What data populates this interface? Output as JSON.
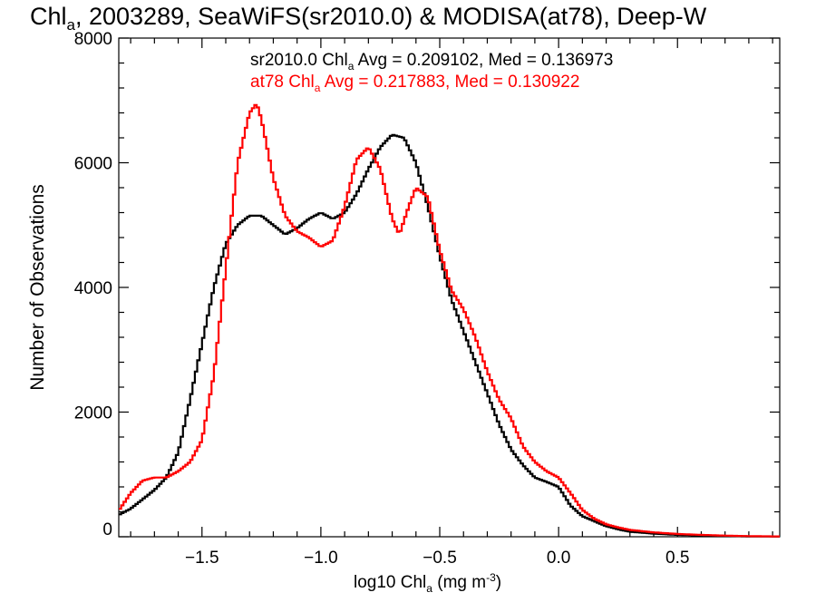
{
  "chart_data": {
    "type": "line",
    "title": {
      "main": "Chl",
      "sub": "a",
      "rest": ", 2003289, SeaWiFS(sr2010.0) & MODISA(at78), Deep-W"
    },
    "xlabel": {
      "main": "log10 Chl",
      "sub": "a",
      "rest": " (mg m",
      "sup": "-3",
      "end": ")"
    },
    "ylabel": "Number of Observations",
    "xlim": [
      -1.85,
      0.93
    ],
    "ylim": [
      0,
      8000
    ],
    "xticks": [
      -1.5,
      -1.0,
      -0.5,
      0.0,
      0.5
    ],
    "xtick_labels": [
      "−1.5",
      "−1.0",
      "−0.5",
      "0.0",
      "0.5"
    ],
    "yticks": [
      0,
      2000,
      4000,
      6000,
      8000
    ],
    "ytick_labels": [
      "0",
      "2000",
      "4000",
      "6000",
      "8000"
    ],
    "grid": false,
    "legend_position": "top",
    "series": [
      {
        "legend": {
          "main": "sr2010.0 Chl",
          "sub": "a",
          "rest": " Avg = 0.209102, Med = 0.136973"
        },
        "color": "#000000",
        "points": [
          [
            -1.85,
            350
          ],
          [
            -1.8,
            450
          ],
          [
            -1.75,
            600
          ],
          [
            -1.7,
            750
          ],
          [
            -1.65,
            950
          ],
          [
            -1.6,
            1350
          ],
          [
            -1.55,
            2200
          ],
          [
            -1.5,
            3100
          ],
          [
            -1.45,
            4000
          ],
          [
            -1.4,
            4700
          ],
          [
            -1.35,
            5000
          ],
          [
            -1.3,
            5150
          ],
          [
            -1.25,
            5150
          ],
          [
            -1.2,
            5000
          ],
          [
            -1.15,
            4850
          ],
          [
            -1.1,
            4950
          ],
          [
            -1.05,
            5100
          ],
          [
            -1.0,
            5200
          ],
          [
            -0.95,
            5100
          ],
          [
            -0.9,
            5200
          ],
          [
            -0.85,
            5500
          ],
          [
            -0.8,
            5900
          ],
          [
            -0.75,
            6250
          ],
          [
            -0.7,
            6450
          ],
          [
            -0.65,
            6400
          ],
          [
            -0.6,
            6000
          ],
          [
            -0.55,
            5300
          ],
          [
            -0.5,
            4500
          ],
          [
            -0.45,
            3800
          ],
          [
            -0.4,
            3300
          ],
          [
            -0.35,
            2800
          ],
          [
            -0.3,
            2300
          ],
          [
            -0.25,
            1800
          ],
          [
            -0.2,
            1400
          ],
          [
            -0.15,
            1150
          ],
          [
            -0.1,
            950
          ],
          [
            -0.05,
            880
          ],
          [
            0.0,
            800
          ],
          [
            0.05,
            500
          ],
          [
            0.1,
            330
          ],
          [
            0.15,
            250
          ],
          [
            0.2,
            170
          ],
          [
            0.25,
            120
          ],
          [
            0.3,
            80
          ],
          [
            0.4,
            50
          ],
          [
            0.5,
            30
          ],
          [
            0.6,
            20
          ],
          [
            0.7,
            12
          ],
          [
            0.8,
            6
          ],
          [
            0.93,
            3
          ]
        ]
      },
      {
        "legend": {
          "main": "at78 Chl",
          "sub": "a",
          "rest": " Avg = 0.217883, Med = 0.130922"
        },
        "color": "#ff0000",
        "points": [
          [
            -1.85,
            420
          ],
          [
            -1.8,
            700
          ],
          [
            -1.75,
            900
          ],
          [
            -1.7,
            950
          ],
          [
            -1.65,
            950
          ],
          [
            -1.6,
            1050
          ],
          [
            -1.55,
            1200
          ],
          [
            -1.5,
            1550
          ],
          [
            -1.45,
            2600
          ],
          [
            -1.4,
            4300
          ],
          [
            -1.35,
            6000
          ],
          [
            -1.3,
            6800
          ],
          [
            -1.27,
            6950
          ],
          [
            -1.25,
            6700
          ],
          [
            -1.2,
            5750
          ],
          [
            -1.15,
            5150
          ],
          [
            -1.1,
            4900
          ],
          [
            -1.05,
            4800
          ],
          [
            -1.0,
            4650
          ],
          [
            -0.95,
            4750
          ],
          [
            -0.9,
            5300
          ],
          [
            -0.85,
            6050
          ],
          [
            -0.8,
            6250
          ],
          [
            -0.75,
            5900
          ],
          [
            -0.7,
            5100
          ],
          [
            -0.67,
            4850
          ],
          [
            -0.63,
            5300
          ],
          [
            -0.6,
            5600
          ],
          [
            -0.55,
            5450
          ],
          [
            -0.5,
            4600
          ],
          [
            -0.45,
            3950
          ],
          [
            -0.4,
            3650
          ],
          [
            -0.35,
            3200
          ],
          [
            -0.3,
            2650
          ],
          [
            -0.25,
            2200
          ],
          [
            -0.2,
            1900
          ],
          [
            -0.15,
            1450
          ],
          [
            -0.1,
            1200
          ],
          [
            -0.05,
            1050
          ],
          [
            0.0,
            950
          ],
          [
            0.05,
            700
          ],
          [
            0.1,
            430
          ],
          [
            0.15,
            290
          ],
          [
            0.2,
            200
          ],
          [
            0.25,
            150
          ],
          [
            0.3,
            110
          ],
          [
            0.4,
            70
          ],
          [
            0.5,
            45
          ],
          [
            0.6,
            30
          ],
          [
            0.7,
            18
          ],
          [
            0.8,
            10
          ],
          [
            0.93,
            5
          ]
        ]
      }
    ]
  }
}
